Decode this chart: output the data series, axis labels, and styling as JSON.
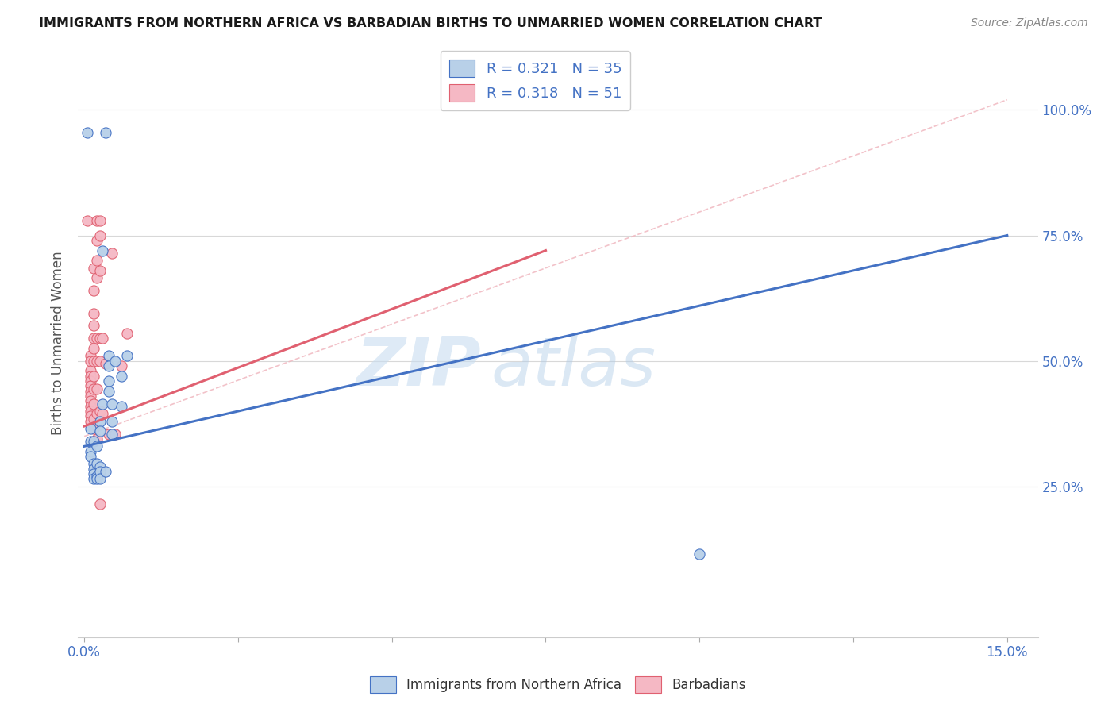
{
  "title": "IMMIGRANTS FROM NORTHERN AFRICA VS BARBADIAN BIRTHS TO UNMARRIED WOMEN CORRELATION CHART",
  "source": "Source: ZipAtlas.com",
  "ylabel": "Births to Unmarried Women",
  "legend_label_blue": "Immigrants from Northern Africa",
  "legend_label_pink": "Barbadians",
  "watermark_zip": "ZIP",
  "watermark_atlas": "atlas",
  "blue_color": "#b8d0e8",
  "pink_color": "#f5b8c4",
  "blue_line_color": "#4472c4",
  "pink_line_color": "#e06070",
  "dash_color": "#f0b8c0",
  "legend_text_color": "#4472c4",
  "axis_color": "#4472c4",
  "blue_scatter": [
    [
      0.0005,
      0.955
    ],
    [
      0.0035,
      0.955
    ],
    [
      0.001,
      0.365
    ],
    [
      0.001,
      0.34
    ],
    [
      0.001,
      0.32
    ],
    [
      0.001,
      0.31
    ],
    [
      0.0015,
      0.34
    ],
    [
      0.0015,
      0.295
    ],
    [
      0.0015,
      0.285
    ],
    [
      0.0015,
      0.275
    ],
    [
      0.0015,
      0.265
    ],
    [
      0.002,
      0.33
    ],
    [
      0.002,
      0.295
    ],
    [
      0.002,
      0.27
    ],
    [
      0.002,
      0.265
    ],
    [
      0.0025,
      0.38
    ],
    [
      0.0025,
      0.36
    ],
    [
      0.0025,
      0.29
    ],
    [
      0.0025,
      0.28
    ],
    [
      0.0025,
      0.265
    ],
    [
      0.003,
      0.72
    ],
    [
      0.003,
      0.415
    ],
    [
      0.0035,
      0.28
    ],
    [
      0.004,
      0.51
    ],
    [
      0.004,
      0.49
    ],
    [
      0.004,
      0.46
    ],
    [
      0.004,
      0.44
    ],
    [
      0.0045,
      0.415
    ],
    [
      0.0045,
      0.38
    ],
    [
      0.0045,
      0.355
    ],
    [
      0.005,
      0.5
    ],
    [
      0.006,
      0.47
    ],
    [
      0.006,
      0.41
    ],
    [
      0.007,
      0.51
    ],
    [
      0.1,
      0.115
    ]
  ],
  "pink_scatter": [
    [
      0.0005,
      0.78
    ],
    [
      0.001,
      0.51
    ],
    [
      0.001,
      0.5
    ],
    [
      0.001,
      0.48
    ],
    [
      0.001,
      0.47
    ],
    [
      0.001,
      0.46
    ],
    [
      0.001,
      0.45
    ],
    [
      0.001,
      0.44
    ],
    [
      0.001,
      0.43
    ],
    [
      0.001,
      0.42
    ],
    [
      0.001,
      0.41
    ],
    [
      0.001,
      0.4
    ],
    [
      0.001,
      0.39
    ],
    [
      0.001,
      0.38
    ],
    [
      0.0015,
      0.685
    ],
    [
      0.0015,
      0.64
    ],
    [
      0.0015,
      0.595
    ],
    [
      0.0015,
      0.57
    ],
    [
      0.0015,
      0.545
    ],
    [
      0.0015,
      0.525
    ],
    [
      0.0015,
      0.5
    ],
    [
      0.0015,
      0.47
    ],
    [
      0.0015,
      0.445
    ],
    [
      0.0015,
      0.415
    ],
    [
      0.0015,
      0.385
    ],
    [
      0.0015,
      0.365
    ],
    [
      0.002,
      0.78
    ],
    [
      0.002,
      0.74
    ],
    [
      0.002,
      0.7
    ],
    [
      0.002,
      0.665
    ],
    [
      0.002,
      0.545
    ],
    [
      0.002,
      0.5
    ],
    [
      0.002,
      0.445
    ],
    [
      0.002,
      0.395
    ],
    [
      0.002,
      0.345
    ],
    [
      0.0025,
      0.78
    ],
    [
      0.0025,
      0.75
    ],
    [
      0.0025,
      0.68
    ],
    [
      0.0025,
      0.545
    ],
    [
      0.0025,
      0.5
    ],
    [
      0.0025,
      0.4
    ],
    [
      0.0025,
      0.215
    ],
    [
      0.003,
      0.545
    ],
    [
      0.003,
      0.395
    ],
    [
      0.0035,
      0.495
    ],
    [
      0.004,
      0.355
    ],
    [
      0.0045,
      0.715
    ],
    [
      0.005,
      0.355
    ],
    [
      0.006,
      0.49
    ],
    [
      0.007,
      0.555
    ]
  ],
  "blue_line_x": [
    0.0,
    0.15
  ],
  "blue_line_y": [
    0.33,
    0.75
  ],
  "pink_line_x": [
    0.0,
    0.075
  ],
  "pink_line_y": [
    0.37,
    0.72
  ],
  "dash_line_x": [
    0.0,
    0.15
  ],
  "dash_line_y": [
    0.35,
    1.02
  ],
  "xlim": [
    -0.001,
    0.155
  ],
  "ylim": [
    -0.05,
    1.12
  ],
  "y_ticks": [
    0.25,
    0.5,
    0.75,
    1.0
  ],
  "y_tick_labels": [
    "25.0%",
    "50.0%",
    "75.0%",
    "100.0%"
  ],
  "x_ticks": [
    0.0,
    0.025,
    0.05,
    0.075,
    0.1,
    0.125,
    0.15
  ],
  "x_tick_labels_show": [
    "0.0%",
    "",
    "",
    "",
    "",
    "",
    "15.0%"
  ]
}
